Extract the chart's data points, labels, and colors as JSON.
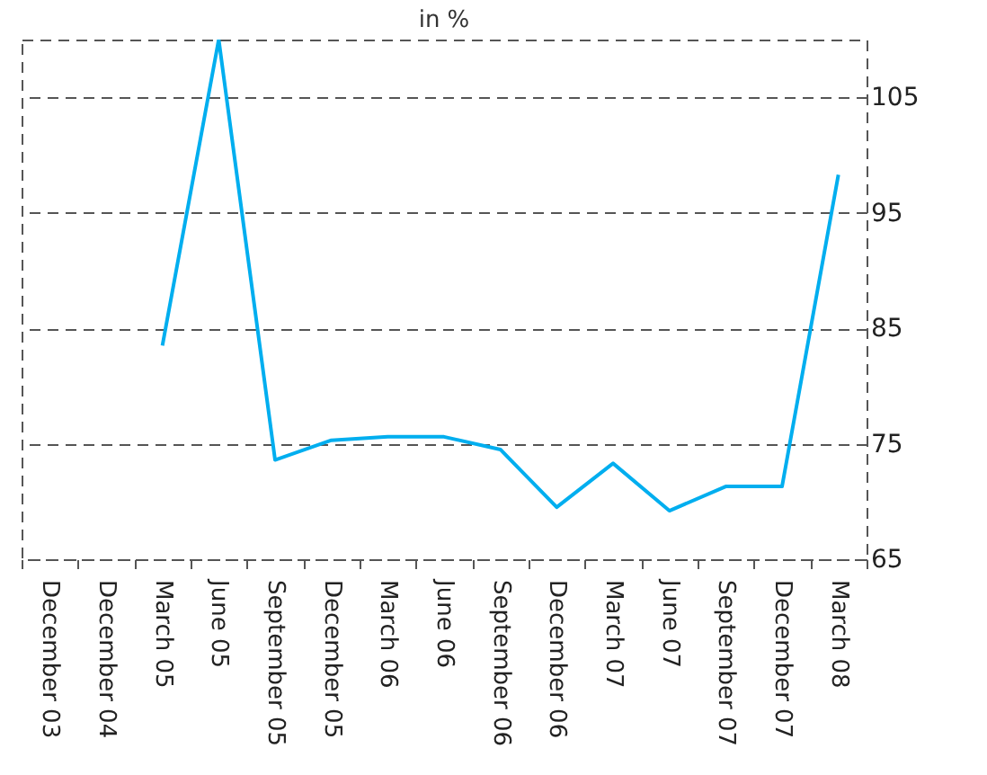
{
  "chart_data": {
    "type": "line",
    "title": "in %",
    "categories": [
      "December 03",
      "December 04",
      "March 05",
      "June 05",
      "September 05",
      "December 05",
      "March 06",
      "June 06",
      "September 06",
      "December 06",
      "March 07",
      "June 07",
      "September 07",
      "December 07",
      "March 08"
    ],
    "series": [
      {
        "color": "#00aeef",
        "values": [
          null,
          null,
          83.5,
          110,
          73.6,
          75.3,
          75.6,
          75.6,
          74.5,
          69.5,
          73.3,
          69.2,
          71.3,
          71.3,
          98.3
        ]
      }
    ],
    "ylim": [
      65,
      110
    ],
    "yticks": [
      65,
      75,
      85,
      95,
      105
    ],
    "grid": "y",
    "line_style": "solid",
    "marker": "none"
  }
}
